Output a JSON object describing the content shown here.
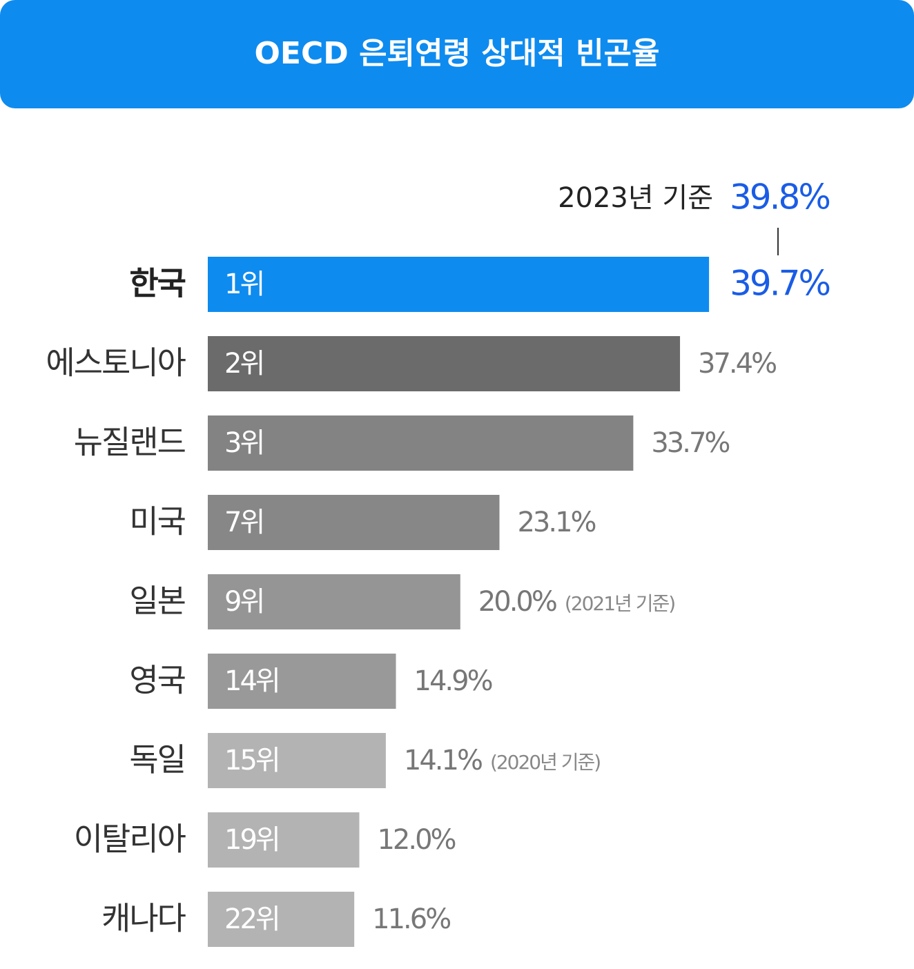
{
  "chart_data": {
    "type": "bar",
    "orientation": "horizontal",
    "title": "OECD 은퇴연령 상대적 빈곤율",
    "categories": [
      "한국",
      "에스토니아",
      "뉴질랜드",
      "미국",
      "일본",
      "영국",
      "독일",
      "이탈리아",
      "캐나다"
    ],
    "ranks": [
      "1위",
      "2위",
      "3위",
      "7위",
      "9위",
      "14위",
      "15위",
      "19위",
      "22위"
    ],
    "values": [
      39.7,
      37.4,
      33.7,
      23.1,
      20.0,
      14.9,
      14.1,
      12.0,
      11.6
    ],
    "value_labels": [
      "39.7%",
      "37.4%",
      "33.7%",
      "23.1%",
      "20.0%",
      "14.9%",
      "14.1%",
      "12.0%",
      "11.6%"
    ],
    "notes": [
      null,
      null,
      null,
      null,
      "(2021년 기준)",
      null,
      "(2020년 기준)",
      null,
      null
    ],
    "colors": [
      "#0e8bef",
      "#6b6b6b",
      "#838383",
      "#878787",
      "#959595",
      "#999999",
      "#b3b3b3",
      "#b3b3b3",
      "#b3b3b3"
    ],
    "annotation": {
      "label": "2023년 기준",
      "value": 39.8,
      "value_label": "39.8%"
    }
  }
}
